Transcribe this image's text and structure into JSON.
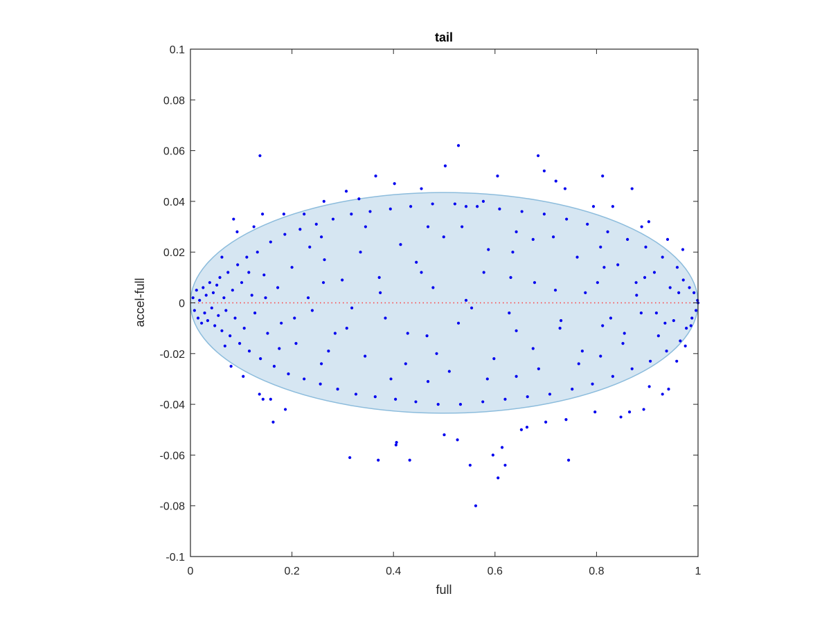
{
  "chart_data": {
    "type": "scatter",
    "title": "tail",
    "xlabel": "full",
    "ylabel": "accel-full",
    "xlim": [
      0,
      1
    ],
    "ylim": [
      -0.1,
      0.1
    ],
    "xticks": [
      0,
      0.2,
      0.4,
      0.6,
      0.8,
      1
    ],
    "xtick_labels": [
      "0",
      "0.2",
      "0.4",
      "0.6",
      "0.8",
      "1"
    ],
    "yticks": [
      0.1,
      0.08,
      0.06,
      0.04,
      0.02,
      0,
      -0.02,
      -0.04,
      -0.06,
      -0.08,
      -0.1
    ],
    "ytick_labels": [
      "0.1",
      "0.08",
      "0.06",
      "0.04",
      "0.02",
      "0",
      "-0.02",
      "-0.04",
      "-0.06",
      "-0.08",
      "-0.1"
    ],
    "grid": false,
    "colors": {
      "points": "#0000ee",
      "ellipse_fill": "#d6e6f2",
      "ellipse_stroke": "#8cbcdc",
      "zero_line": "#ff3b3b",
      "axes": "#262626"
    },
    "ellipse": {
      "center_x": 0.5,
      "center_y": 0,
      "semi_x": 0.5,
      "semi_y": 0.0435
    },
    "zero_line": {
      "y": 0,
      "style": "dotted"
    },
    "series": [
      {
        "marker": "dot",
        "points": [
          [
            0.137,
            0.058
          ],
          [
            0.528,
            0.062
          ],
          [
            0.685,
            0.058
          ],
          [
            0.697,
            0.052
          ],
          [
            0.502,
            0.054
          ],
          [
            0.365,
            0.05
          ],
          [
            0.402,
            0.047
          ],
          [
            0.605,
            0.05
          ],
          [
            0.738,
            0.045
          ],
          [
            0.812,
            0.05
          ],
          [
            0.87,
            0.045
          ],
          [
            0.72,
            0.048
          ],
          [
            0.307,
            0.044
          ],
          [
            0.455,
            0.045
          ],
          [
            0.543,
            0.038
          ],
          [
            0.577,
            0.04
          ],
          [
            0.263,
            0.04
          ],
          [
            0.332,
            0.041
          ],
          [
            0.224,
            0.035
          ],
          [
            0.794,
            0.038
          ],
          [
            0.832,
            0.038
          ],
          [
            0.142,
            0.035
          ],
          [
            0.085,
            0.033
          ],
          [
            0.125,
            0.03
          ],
          [
            0.184,
            0.035
          ],
          [
            0.94,
            0.025
          ],
          [
            0.903,
            0.032
          ],
          [
            0.97,
            0.021
          ],
          [
            0.889,
            0.03
          ],
          [
            0.092,
            0.028
          ],
          [
            0.5,
            -0.052
          ],
          [
            0.526,
            -0.054
          ],
          [
            0.614,
            -0.057
          ],
          [
            0.62,
            -0.064
          ],
          [
            0.551,
            -0.064
          ],
          [
            0.596,
            -0.06
          ],
          [
            0.606,
            -0.069
          ],
          [
            0.562,
            -0.08
          ],
          [
            0.405,
            -0.056
          ],
          [
            0.406,
            -0.055
          ],
          [
            0.432,
            -0.062
          ],
          [
            0.37,
            -0.062
          ],
          [
            0.314,
            -0.061
          ],
          [
            0.745,
            -0.062
          ],
          [
            0.143,
            -0.038
          ],
          [
            0.163,
            -0.047
          ],
          [
            0.136,
            -0.036
          ],
          [
            0.158,
            -0.038
          ],
          [
            0.187,
            -0.042
          ],
          [
            0.93,
            -0.036
          ],
          [
            0.942,
            -0.034
          ],
          [
            0.865,
            -0.043
          ],
          [
            0.893,
            -0.042
          ],
          [
            0.904,
            -0.033
          ],
          [
            0.797,
            -0.043
          ],
          [
            0.848,
            -0.045
          ],
          [
            0.663,
            -0.049
          ],
          [
            0.652,
            -0.05
          ],
          [
            0.7,
            -0.047
          ],
          [
            0.74,
            -0.046
          ],
          [
            0.104,
            -0.029
          ],
          [
            0.08,
            -0.025
          ],
          [
            0.958,
            -0.023
          ],
          [
            0.975,
            -0.017
          ],
          [
            0.986,
            -0.009
          ],
          [
            0.005,
            0.002
          ],
          [
            0.008,
            -0.003
          ],
          [
            0.012,
            0.005
          ],
          [
            0.015,
            -0.006
          ],
          [
            0.018,
            0.001
          ],
          [
            0.022,
            -0.008
          ],
          [
            0.025,
            0.006
          ],
          [
            0.028,
            -0.004
          ],
          [
            0.031,
            0.003
          ],
          [
            0.034,
            -0.007
          ],
          [
            0.038,
            0.008
          ],
          [
            0.042,
            -0.002
          ],
          [
            0.045,
            0.004
          ],
          [
            0.048,
            -0.009
          ],
          [
            0.052,
            0.007
          ],
          [
            0.055,
            -0.005
          ],
          [
            0.058,
            0.01
          ],
          [
            0.062,
            -0.011
          ],
          [
            0.066,
            0.002
          ],
          [
            0.07,
            -0.003
          ],
          [
            0.074,
            0.012
          ],
          [
            0.078,
            -0.013
          ],
          [
            0.083,
            0.005
          ],
          [
            0.088,
            -0.006
          ],
          [
            0.093,
            0.015
          ],
          [
            0.097,
            -0.016
          ],
          [
            0.101,
            0.008
          ],
          [
            0.106,
            -0.01
          ],
          [
            0.111,
            0.018
          ],
          [
            0.116,
            -0.019
          ],
          [
            0.121,
            0.003
          ],
          [
            0.127,
            -0.004
          ],
          [
            0.132,
            0.02
          ],
          [
            0.138,
            -0.022
          ],
          [
            0.145,
            0.011
          ],
          [
            0.152,
            -0.012
          ],
          [
            0.158,
            0.024
          ],
          [
            0.165,
            -0.025
          ],
          [
            0.172,
            0.006
          ],
          [
            0.179,
            -0.008
          ],
          [
            0.186,
            0.027
          ],
          [
            0.193,
            -0.028
          ],
          [
            0.2,
            0.014
          ],
          [
            0.208,
            -0.016
          ],
          [
            0.216,
            0.029
          ],
          [
            0.224,
            -0.03
          ],
          [
            0.232,
            0.002
          ],
          [
            0.24,
            -0.003
          ],
          [
            0.248,
            0.031
          ],
          [
            0.256,
            -0.032
          ],
          [
            0.264,
            0.017
          ],
          [
            0.272,
            -0.019
          ],
          [
            0.281,
            0.033
          ],
          [
            0.29,
            -0.034
          ],
          [
            0.299,
            0.009
          ],
          [
            0.308,
            -0.01
          ],
          [
            0.317,
            0.035
          ],
          [
            0.326,
            -0.036
          ],
          [
            0.335,
            0.02
          ],
          [
            0.344,
            -0.021
          ],
          [
            0.354,
            0.036
          ],
          [
            0.364,
            -0.037
          ],
          [
            0.374,
            0.004
          ],
          [
            0.384,
            -0.006
          ],
          [
            0.394,
            0.037
          ],
          [
            0.404,
            -0.038
          ],
          [
            0.414,
            0.023
          ],
          [
            0.424,
            -0.024
          ],
          [
            0.434,
            0.038
          ],
          [
            0.444,
            -0.039
          ],
          [
            0.455,
            0.012
          ],
          [
            0.466,
            -0.013
          ],
          [
            0.477,
            0.039
          ],
          [
            0.488,
            -0.04
          ],
          [
            0.499,
            0.026
          ],
          [
            0.51,
            -0.027
          ],
          [
            0.521,
            0.039
          ],
          [
            0.532,
            -0.04
          ],
          [
            0.543,
            0.001
          ],
          [
            0.554,
            -0.002
          ],
          [
            0.565,
            0.038
          ],
          [
            0.576,
            -0.039
          ],
          [
            0.587,
            0.021
          ],
          [
            0.598,
            -0.022
          ],
          [
            0.609,
            0.037
          ],
          [
            0.62,
            -0.038
          ],
          [
            0.631,
            0.01
          ],
          [
            0.642,
            -0.011
          ],
          [
            0.653,
            0.036
          ],
          [
            0.664,
            -0.037
          ],
          [
            0.675,
            0.025
          ],
          [
            0.686,
            -0.026
          ],
          [
            0.697,
            0.035
          ],
          [
            0.708,
            -0.036
          ],
          [
            0.719,
            0.005
          ],
          [
            0.73,
            -0.007
          ],
          [
            0.741,
            0.033
          ],
          [
            0.752,
            -0.034
          ],
          [
            0.762,
            0.018
          ],
          [
            0.772,
            -0.019
          ],
          [
            0.782,
            0.031
          ],
          [
            0.792,
            -0.032
          ],
          [
            0.802,
            0.008
          ],
          [
            0.812,
            -0.009
          ],
          [
            0.822,
            0.028
          ],
          [
            0.832,
            -0.029
          ],
          [
            0.842,
            0.015
          ],
          [
            0.852,
            -0.016
          ],
          [
            0.861,
            0.025
          ],
          [
            0.87,
            -0.026
          ],
          [
            0.879,
            0.003
          ],
          [
            0.888,
            -0.004
          ],
          [
            0.897,
            0.022
          ],
          [
            0.906,
            -0.023
          ],
          [
            0.914,
            0.012
          ],
          [
            0.922,
            -0.013
          ],
          [
            0.93,
            0.018
          ],
          [
            0.938,
            -0.019
          ],
          [
            0.945,
            0.006
          ],
          [
            0.952,
            -0.007
          ],
          [
            0.959,
            0.014
          ],
          [
            0.965,
            -0.015
          ],
          [
            0.971,
            0.009
          ],
          [
            0.977,
            -0.01
          ],
          [
            0.983,
            0.006
          ],
          [
            0.988,
            -0.006
          ],
          [
            0.992,
            0.004
          ],
          [
            0.996,
            -0.003
          ],
          [
            0.999,
            0.001
          ],
          [
            1.0,
            0.0
          ],
          [
            0.115,
            0.012
          ],
          [
            0.175,
            -0.018
          ],
          [
            0.235,
            0.022
          ],
          [
            0.285,
            -0.012
          ],
          [
            0.345,
            0.03
          ],
          [
            0.395,
            -0.03
          ],
          [
            0.445,
            0.016
          ],
          [
            0.485,
            -0.02
          ],
          [
            0.535,
            0.03
          ],
          [
            0.585,
            -0.03
          ],
          [
            0.635,
            0.02
          ],
          [
            0.675,
            -0.018
          ],
          [
            0.715,
            0.026
          ],
          [
            0.765,
            -0.024
          ],
          [
            0.815,
            0.014
          ],
          [
            0.855,
            -0.012
          ],
          [
            0.895,
            0.01
          ],
          [
            0.935,
            -0.008
          ],
          [
            0.962,
            0.004
          ],
          [
            0.148,
            0.002
          ],
          [
            0.205,
            -0.006
          ],
          [
            0.262,
            0.008
          ],
          [
            0.318,
            -0.002
          ],
          [
            0.372,
            0.01
          ],
          [
            0.428,
            -0.012
          ],
          [
            0.478,
            0.006
          ],
          [
            0.528,
            -0.008
          ],
          [
            0.578,
            0.012
          ],
          [
            0.628,
            -0.004
          ],
          [
            0.678,
            0.008
          ],
          [
            0.728,
            -0.01
          ],
          [
            0.778,
            0.004
          ],
          [
            0.828,
            -0.006
          ],
          [
            0.878,
            0.008
          ],
          [
            0.918,
            -0.004
          ],
          [
            0.062,
            0.018
          ],
          [
            0.068,
            -0.017
          ],
          [
            0.258,
            0.026
          ],
          [
            0.258,
            -0.024
          ],
          [
            0.468,
            0.03
          ],
          [
            0.468,
            -0.031
          ],
          [
            0.642,
            0.028
          ],
          [
            0.642,
            -0.029
          ],
          [
            0.808,
            0.022
          ],
          [
            0.808,
            -0.021
          ]
        ]
      }
    ]
  }
}
